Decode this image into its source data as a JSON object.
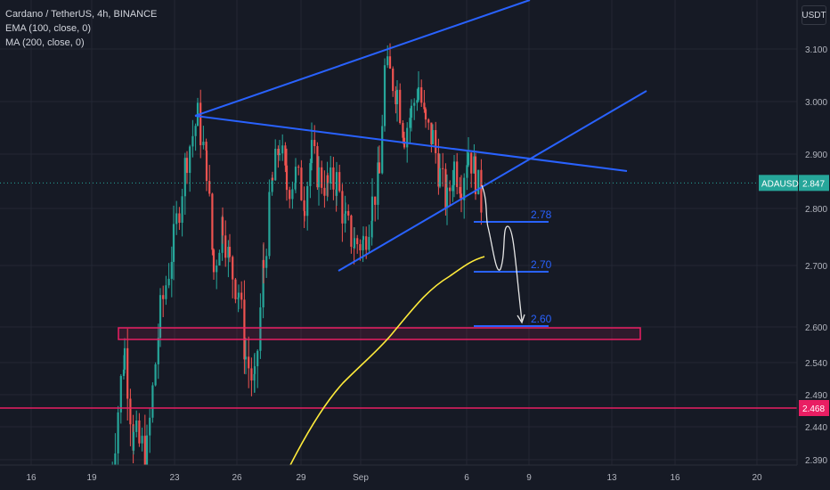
{
  "legend": {
    "title": "Cardano / TetherUS, 4h, BINANCE",
    "ema": "EMA (100, close, 0)",
    "ma": "MA (200, close, 0)"
  },
  "currency": "USDT",
  "colors": {
    "background": "#161a25",
    "up": "#26a69a",
    "down": "#ef5350",
    "trendline": "#2962ff",
    "ma_line": "#ffeb3b",
    "zone": "#e91e63",
    "target_text": "#2962ff"
  },
  "chart_data": {
    "type": "candlestick",
    "symbol": "ADAUSDT",
    "y_tick_labels": [
      "3.100",
      "3.000",
      "2.900",
      "2.800",
      "2.700",
      "2.600",
      "2.540",
      "2.490",
      "2.440",
      "2.390"
    ],
    "x_tick_labels": [
      "16",
      "19",
      "23",
      "26",
      "29",
      "Sep",
      "6",
      "9",
      "13",
      "16",
      "20"
    ],
    "last_price": {
      "label": "ADAUSDT",
      "value": "2.847"
    },
    "support_price": {
      "value": "2.468"
    },
    "targets": [
      "2.78",
      "2.70",
      "2.60"
    ],
    "grid": true
  }
}
